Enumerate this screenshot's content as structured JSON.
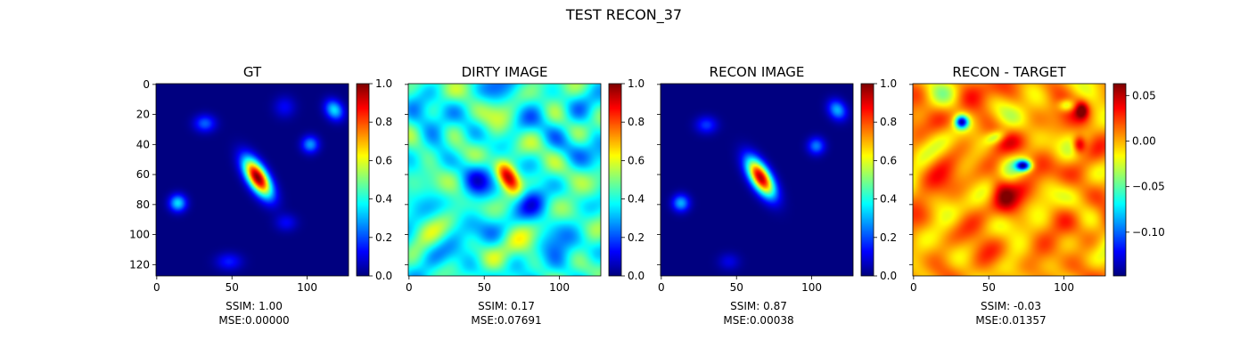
{
  "figure": {
    "title": "TEST RECON_37"
  },
  "colormap": "jet",
  "chart_data": [
    {
      "type": "heatmap",
      "title": "GT",
      "image_size": [
        128,
        128
      ],
      "xticks": [
        0,
        50,
        100
      ],
      "yticks": [
        0,
        20,
        40,
        60,
        80,
        100,
        120
      ],
      "caption": [
        "SSIM: 1.00",
        "MSE:0.00000"
      ],
      "colorbar": {
        "range": [
          0.0,
          1.0
        ],
        "ticks": [
          "0.0",
          "0.2",
          "0.4",
          "0.6",
          "0.8",
          "1.0"
        ],
        "tick_values": [
          0.0,
          0.2,
          0.4,
          0.6,
          0.8,
          1.0
        ]
      },
      "show_ytick_labels": true,
      "background": 0.0,
      "features": [
        {
          "x": 67,
          "y": 62,
          "sx": 4.5,
          "sy": 10,
          "rot": 0.55,
          "a": 1.0
        },
        {
          "x": 118,
          "y": 17,
          "sx": 4,
          "sy": 5,
          "rot": 0.6,
          "a": 0.35
        },
        {
          "x": 102,
          "y": 40,
          "sx": 4,
          "sy": 4,
          "rot": 0.4,
          "a": 0.28
        },
        {
          "x": 32,
          "y": 26,
          "sx": 5,
          "sy": 4,
          "rot": 0.0,
          "a": 0.22
        },
        {
          "x": 14,
          "y": 79,
          "sx": 4,
          "sy": 4,
          "rot": 0.5,
          "a": 0.35
        },
        {
          "x": 86,
          "y": 92,
          "sx": 5,
          "sy": 4,
          "rot": 0.0,
          "a": 0.12
        },
        {
          "x": 48,
          "y": 118,
          "sx": 6,
          "sy": 4,
          "rot": 0.0,
          "a": 0.15
        },
        {
          "x": 85,
          "y": 15,
          "sx": 5,
          "sy": 5,
          "rot": 0.0,
          "a": 0.12
        }
      ]
    },
    {
      "type": "heatmap",
      "title": "DIRTY IMAGE",
      "image_size": [
        128,
        128
      ],
      "xticks": [
        0,
        50,
        100
      ],
      "yticks": [
        0,
        20,
        40,
        60,
        80,
        100,
        120
      ],
      "caption": [
        "SSIM: 0.17",
        "MSE:0.07691"
      ],
      "colorbar": {
        "range": [
          0.0,
          1.0
        ],
        "ticks": [
          "0.0",
          "0.2",
          "0.4",
          "0.6",
          "0.8",
          "1.0"
        ],
        "tick_values": [
          0.0,
          0.2,
          0.4,
          0.6,
          0.8,
          1.0
        ]
      },
      "show_ytick_labels": false,
      "background": 0.4,
      "noise": 0.12,
      "features": [
        {
          "x": 66,
          "y": 62,
          "sx": 4.5,
          "sy": 8,
          "rot": 0.55,
          "a": 0.62
        },
        {
          "x": 45,
          "y": 62,
          "sx": 7,
          "sy": 9,
          "rot": 0.0,
          "a": -0.22
        },
        {
          "x": 82,
          "y": 78,
          "sx": 7,
          "sy": 8,
          "rot": 0.0,
          "a": -0.2
        },
        {
          "x": 30,
          "y": 45,
          "sx": 6,
          "sy": 6,
          "rot": 0.0,
          "a": 0.12
        }
      ]
    },
    {
      "type": "heatmap",
      "title": "RECON IMAGE",
      "image_size": [
        128,
        128
      ],
      "xticks": [
        0,
        50,
        100
      ],
      "yticks": [
        0,
        20,
        40,
        60,
        80,
        100,
        120
      ],
      "caption": [
        "SSIM: 0.87",
        "MSE:0.00038"
      ],
      "colorbar": {
        "range": [
          0.0,
          1.0
        ],
        "ticks": [
          "0.0",
          "0.2",
          "0.4",
          "0.6",
          "0.8",
          "1.0"
        ],
        "tick_values": [
          0.0,
          0.2,
          0.4,
          0.6,
          0.8,
          1.0
        ]
      },
      "show_ytick_labels": false,
      "background": 0.0,
      "features": [
        {
          "x": 66,
          "y": 62,
          "sx": 4.5,
          "sy": 10,
          "rot": 0.55,
          "a": 0.95
        },
        {
          "x": 117,
          "y": 17,
          "sx": 4,
          "sy": 5,
          "rot": 0.6,
          "a": 0.3
        },
        {
          "x": 103,
          "y": 41,
          "sx": 4,
          "sy": 4,
          "rot": 0.4,
          "a": 0.25
        },
        {
          "x": 30,
          "y": 27,
          "sx": 5,
          "sy": 4,
          "rot": 0.0,
          "a": 0.18
        },
        {
          "x": 13,
          "y": 79,
          "sx": 4,
          "sy": 4,
          "rot": 0.5,
          "a": 0.3
        },
        {
          "x": 45,
          "y": 118,
          "sx": 5,
          "sy": 4,
          "rot": 0.0,
          "a": 0.1
        }
      ]
    },
    {
      "type": "heatmap",
      "title": "RECON - TARGET",
      "image_size": [
        128,
        128
      ],
      "xticks": [
        0,
        50,
        100
      ],
      "yticks": [
        0,
        20,
        40,
        60,
        80,
        100,
        120
      ],
      "caption": [
        "SSIM: -0.03",
        "MSE:0.01357"
      ],
      "colorbar": {
        "range": [
          -0.148,
          0.063
        ],
        "ticks": [
          "0.05",
          "0.00",
          "−0.05",
          "−0.10"
        ],
        "tick_values": [
          0.05,
          0.0,
          -0.05,
          -0.1
        ]
      },
      "show_ytick_labels": false,
      "background": 0.72,
      "noise": 0.1,
      "features": [
        {
          "x": 32,
          "y": 25,
          "sx": 3,
          "sy": 3,
          "rot": 0.0,
          "a": -0.6
        },
        {
          "x": 73,
          "y": 54,
          "sx": 3.5,
          "sy": 2.5,
          "rot": 0.0,
          "a": -0.62
        },
        {
          "x": 110,
          "y": 40,
          "sx": 3,
          "sy": 4,
          "rot": 0.0,
          "a": 0.28
        },
        {
          "x": 112,
          "y": 17,
          "sx": 3,
          "sy": 4,
          "rot": 0.0,
          "a": 0.25
        },
        {
          "x": 58,
          "y": 68,
          "sx": 5,
          "sy": 10,
          "rot": 0.3,
          "a": 0.18
        },
        {
          "x": 102,
          "y": 14,
          "sx": 4,
          "sy": 3,
          "rot": 0.0,
          "a": -0.25
        },
        {
          "x": 55,
          "y": 35,
          "sx": 5,
          "sy": 3,
          "rot": 0.4,
          "a": -0.22
        }
      ]
    }
  ]
}
